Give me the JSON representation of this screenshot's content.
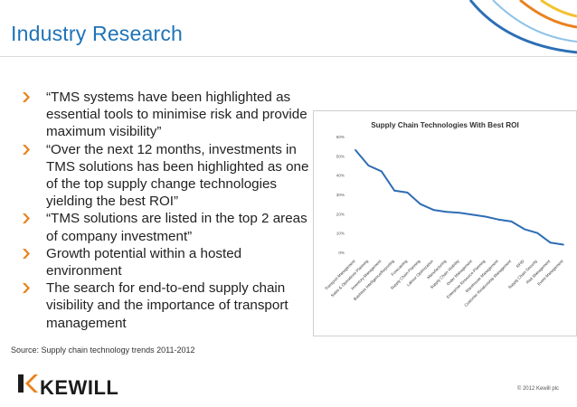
{
  "slide": {
    "title": "Industry Research",
    "bullets": [
      "“TMS systems have been highlighted as essential tools to minimise risk and provide maximum visibility”",
      "“Over the next 12 months, investments in TMS solutions has been highlighted as one of the top supply change technologies yielding the best ROI”",
      "“TMS solutions are listed in the top 2 areas of company investment”",
      "Growth potential within a hosted environment",
      "The search for end-to-end supply chain visibility and the importance of transport management"
    ],
    "source": "Source: Supply chain technology trends 2011-2012",
    "logo_text": "KEWILL",
    "logo_mark": "K",
    "copyright": "© 2012 Kewill plc"
  },
  "colors": {
    "title": "#1f73b7",
    "bullet": "#e8821e",
    "line": "#2e6db4",
    "logo_mark": "#e8821e"
  },
  "icons": {
    "bullet": "chevron-right-icon",
    "logo": "kewill-k-logo"
  },
  "chart_data": {
    "type": "line",
    "title": "Supply Chain Technologies With Best ROI",
    "xlabel": "",
    "ylabel": "",
    "ylim": [
      0,
      60
    ],
    "yticks": [
      0,
      10,
      20,
      30,
      40,
      50,
      60
    ],
    "ytick_format": "percent",
    "grid": false,
    "legend": "none",
    "categories": [
      "Transport Management",
      "Sales & Operations Planning",
      "Inventory Management",
      "Business Intelligence/Reporting",
      "Forecasting",
      "Supply Chain Planning",
      "Labour Optimization",
      "Manufacturing",
      "Supply Chain Visibility",
      "Order Management",
      "Enterprise Resource Planning",
      "Warehouse Management",
      "Customer Relationship Management",
      "RFID",
      "Supply Chain Security",
      "Risk Management",
      "Event Management"
    ],
    "series": [
      {
        "values": [
          53,
          45,
          42,
          32,
          31,
          25,
          22,
          21,
          20.5,
          19.5,
          18.5,
          17,
          16,
          12,
          10,
          5,
          4
        ]
      }
    ]
  }
}
